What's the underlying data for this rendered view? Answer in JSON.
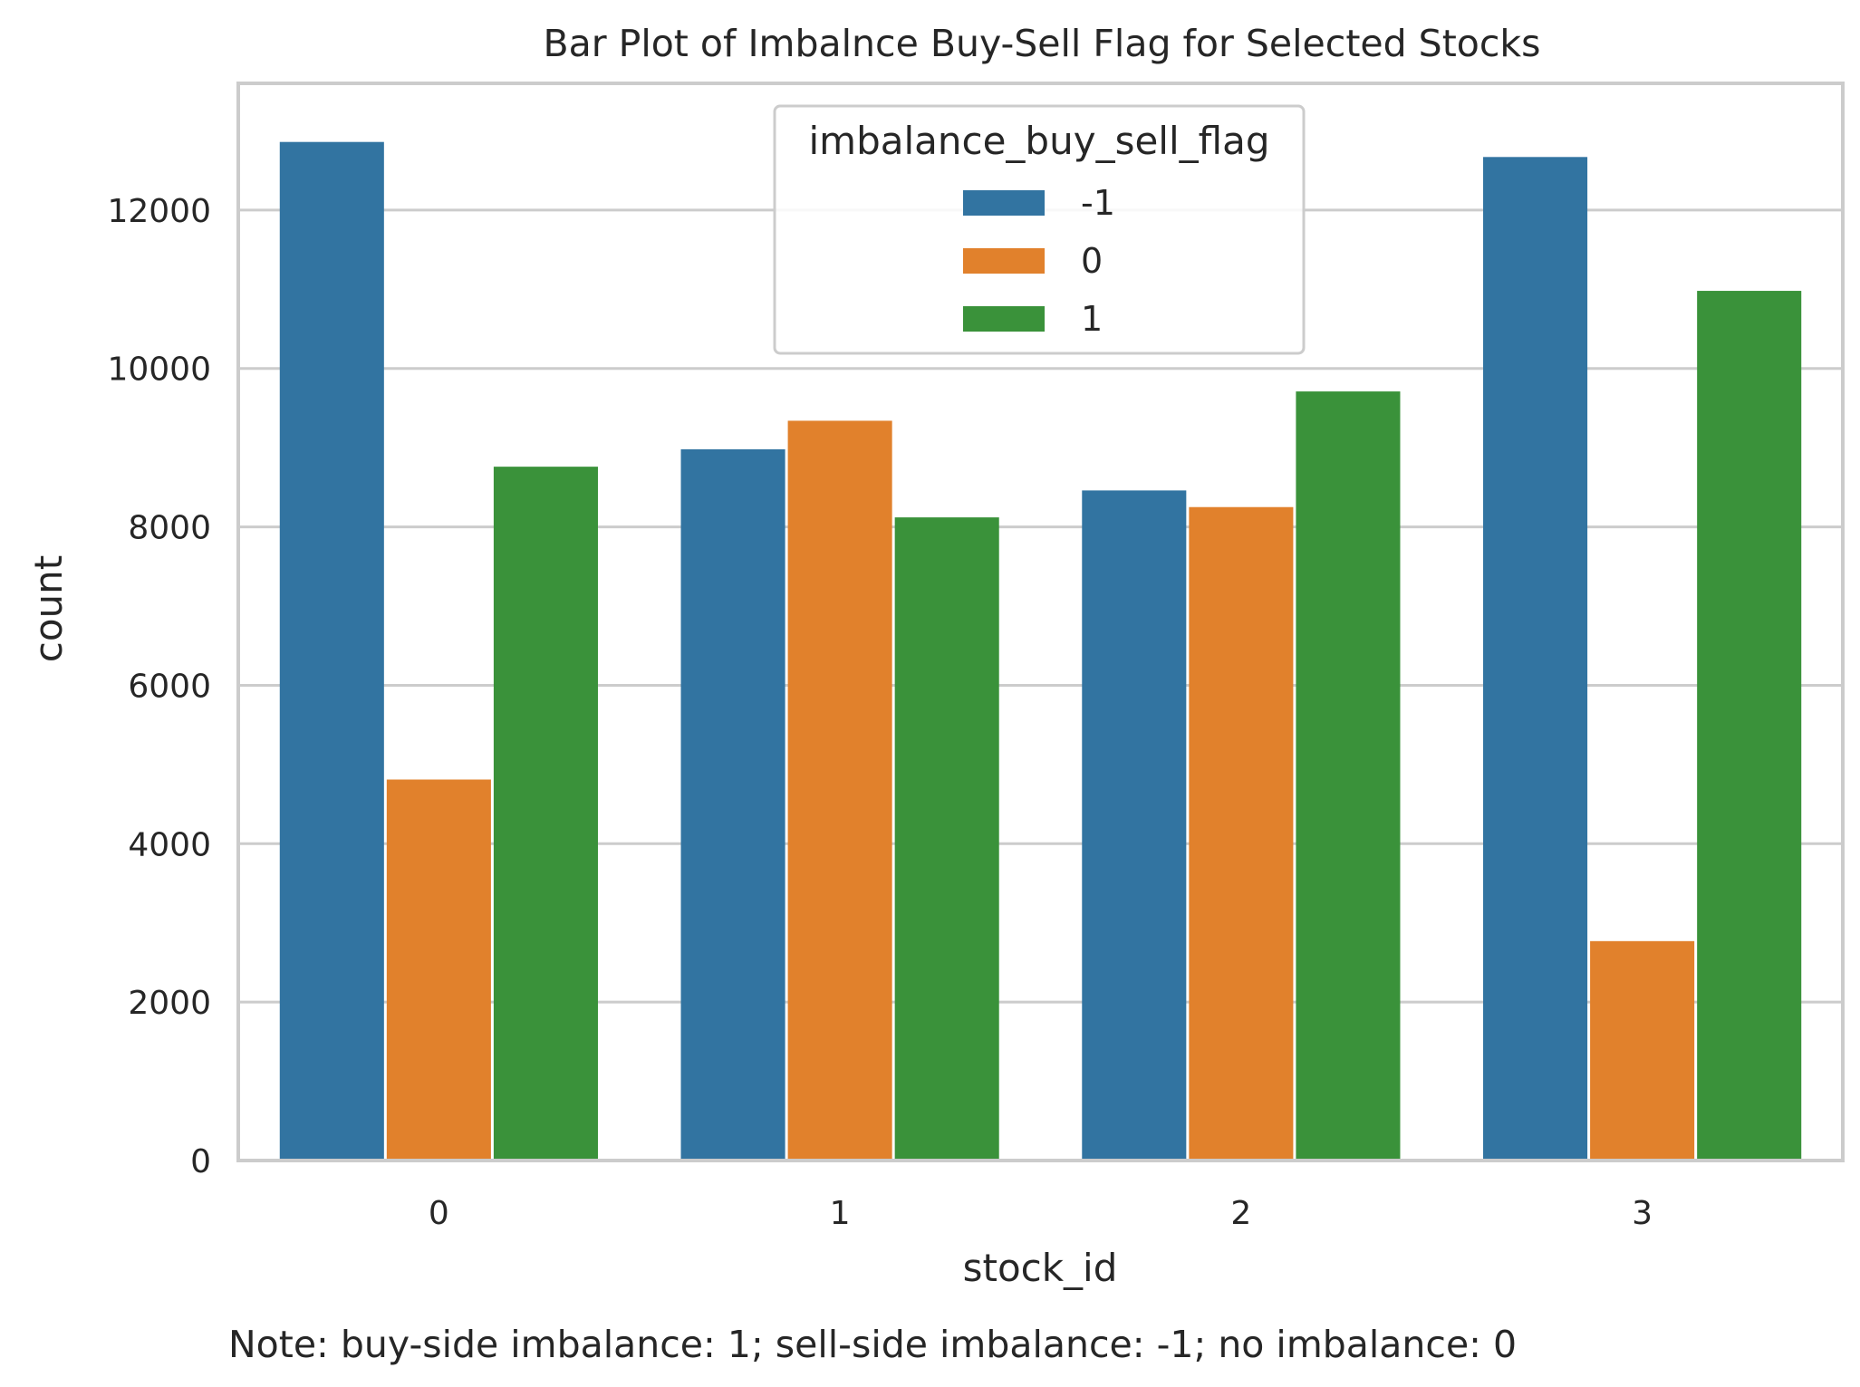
{
  "chart_data": {
    "type": "bar",
    "title": "Bar Plot of Imbalnce Buy-Sell Flag for Selected Stocks",
    "xlabel": "stock_id",
    "ylabel": "count",
    "categories": [
      "0",
      "1",
      "2",
      "3"
    ],
    "ylim": [
      0,
      13600
    ],
    "yticks": [
      0,
      2000,
      4000,
      6000,
      8000,
      10000,
      12000
    ],
    "ytick_labels": [
      "0",
      "2000",
      "4000",
      "6000",
      "8000",
      "10000",
      "12000"
    ],
    "grid": true,
    "legend": {
      "title": "imbalance_buy_sell_flag",
      "placement": "top-center"
    },
    "series": [
      {
        "name": "-1",
        "color": "#3274a1",
        "values": [
          12860,
          8980,
          8460,
          12670
        ]
      },
      {
        "name": "0",
        "color": "#e1812c",
        "values": [
          4810,
          9340,
          8250,
          2770
        ]
      },
      {
        "name": "1",
        "color": "#3a923a",
        "values": [
          8760,
          8120,
          9710,
          10980
        ]
      }
    ],
    "note": "Note: buy-side imbalance: 1; sell-side imbalance: -1; no imbalance: 0"
  }
}
